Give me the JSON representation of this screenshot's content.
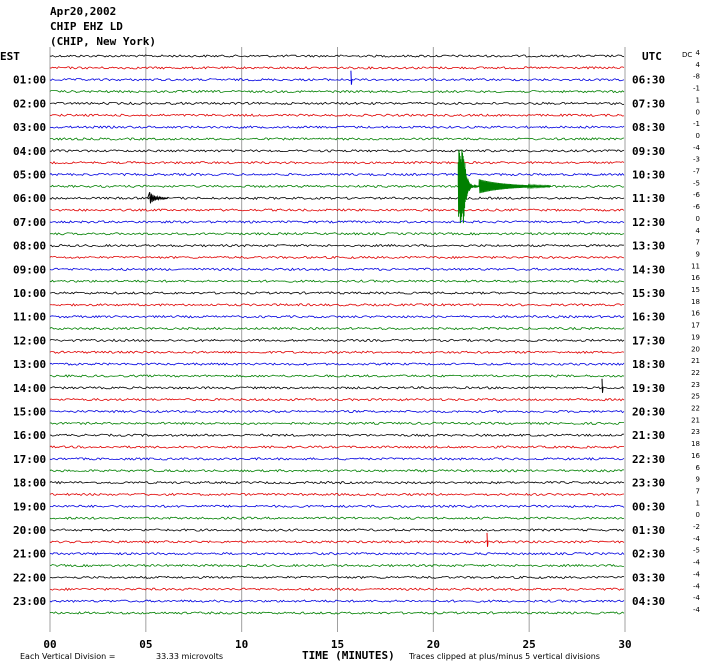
{
  "header": {
    "date": "Apr20,2002",
    "station": "CHIP EHZ LD",
    "location": "(CHIP, New York)"
  },
  "chart_data": {
    "type": "line",
    "left_axis_title": "EST",
    "right_axis_title": "UTC",
    "dc_title": "DC",
    "xlabel": "TIME (MINUTES)",
    "xlim": [
      0,
      30
    ],
    "x_ticks": [
      "00",
      "05",
      "10",
      "15",
      "20",
      "25",
      "30"
    ],
    "x_tick_values": [
      0,
      5,
      10,
      15,
      20,
      25,
      30
    ],
    "trace_count": 48,
    "trace_colors": [
      "#000000",
      "#e00000",
      "#0000e0",
      "#008000"
    ],
    "left_labels": [
      "",
      "01:00",
      "02:00",
      "03:00",
      "04:00",
      "05:00",
      "06:00",
      "07:00",
      "08:00",
      "09:00",
      "10:00",
      "11:00",
      "12:00",
      "13:00",
      "14:00",
      "15:00",
      "16:00",
      "17:00",
      "18:00",
      "19:00",
      "20:00",
      "21:00",
      "22:00",
      "23:00"
    ],
    "right_labels": [
      "",
      "06:30",
      "07:30",
      "08:30",
      "09:30",
      "10:30",
      "11:30",
      "12:30",
      "13:30",
      "14:30",
      "15:30",
      "16:30",
      "17:30",
      "18:30",
      "19:30",
      "20:30",
      "21:30",
      "22:30",
      "23:30",
      "00:30",
      "01:30",
      "02:30",
      "03:30",
      "04:30"
    ],
    "dc_offsets": [
      "4",
      "4",
      "-8",
      "-1",
      "1",
      "0",
      "-1",
      "0",
      "-4",
      "-3",
      "-7",
      "-5",
      "-6",
      "-6",
      "0",
      "4",
      "7",
      "9",
      "11",
      "16",
      "15",
      "18",
      "16",
      "17",
      "19",
      "20",
      "21",
      "22",
      "23",
      "25",
      "22",
      "21",
      "23",
      "18",
      "16",
      "6",
      "9",
      "7",
      "1",
      "0",
      "-2",
      "-4",
      "-5",
      "-4",
      "-4",
      "-4",
      "-4",
      "-4"
    ],
    "events": [
      {
        "trace": 41,
        "x": 22.8,
        "type": "spike"
      },
      {
        "trace": 28,
        "x": 28.8,
        "type": "spike"
      },
      {
        "trace": 2,
        "x": 15.7,
        "type": "spike"
      },
      {
        "trace": 12,
        "x": 5.2,
        "type": "local-event"
      },
      {
        "trace": 11,
        "x": 21.3,
        "type": "earthquake",
        "coda_traces": 2
      }
    ],
    "footer_scale": "Each Vertical Division =",
    "footer_scale_value": "33.33 microvolts",
    "footer_clip": "Traces clipped at plus/minus 5 vertical divisions"
  }
}
